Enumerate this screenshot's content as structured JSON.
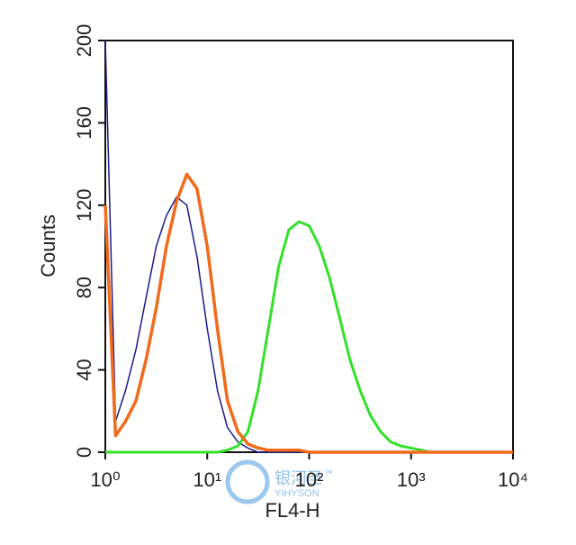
{
  "chart_data": {
    "type": "line",
    "y_label": "Counts",
    "x_label": "FL4-H",
    "xscale": "log",
    "x": [
      1,
      1.26,
      1.58,
      2,
      2.51,
      3.16,
      3.98,
      5.01,
      6.31,
      7.94,
      10,
      12.6,
      15.8,
      20,
      25.1,
      31.6,
      39.8,
      50.1,
      63.1,
      79.4,
      100,
      126,
      158,
      200,
      251,
      316,
      398,
      501,
      631,
      794,
      1000,
      1260,
      1580,
      2000,
      2510,
      3160,
      3980,
      5010,
      6310,
      7940,
      10000
    ],
    "series": [
      {
        "color": "#1a1a8c",
        "width": 1.5,
        "values": [
          200,
          15,
          30,
          50,
          75,
          100,
          115,
          124,
          120,
          95,
          60,
          30,
          12,
          5,
          2,
          0,
          0,
          0,
          0,
          0,
          0,
          0,
          0,
          0,
          0,
          0,
          0,
          0,
          0,
          0,
          0,
          0,
          0,
          0,
          0,
          0,
          0,
          0,
          0,
          0,
          0
        ]
      },
      {
        "color": "#f26a1b",
        "width": 3.5,
        "values": [
          120,
          8,
          15,
          25,
          45,
          70,
          100,
          122,
          135,
          128,
          100,
          60,
          25,
          10,
          4,
          2,
          1,
          1,
          1,
          1,
          0,
          0,
          0,
          0,
          0,
          0,
          0,
          0,
          0,
          0,
          0,
          0,
          0,
          0,
          0,
          0,
          0,
          0,
          0,
          0,
          0
        ]
      },
      {
        "color": "#33e02a",
        "width": 3,
        "values": [
          0,
          0,
          0,
          0,
          0,
          0,
          0,
          0,
          0,
          0,
          0,
          0,
          1,
          3,
          10,
          30,
          60,
          90,
          108,
          112,
          110,
          100,
          85,
          65,
          45,
          30,
          18,
          10,
          5,
          3,
          2,
          1,
          0,
          0,
          0,
          0,
          0,
          0,
          0,
          0,
          0
        ]
      }
    ],
    "xlim": [
      1,
      10000
    ],
    "xticks": [
      {
        "value": 1,
        "label": "10⁰"
      },
      {
        "value": 10,
        "label": "10¹"
      },
      {
        "value": 100,
        "label": "10²"
      },
      {
        "value": 1000,
        "label": "10³"
      },
      {
        "value": 10000,
        "label": "10⁴"
      }
    ],
    "ylim": [
      0,
      200
    ],
    "yticks": [
      0,
      40,
      80,
      120,
      160,
      200
    ]
  },
  "watermark": {
    "cn": "银河圣",
    "en": "YIHYSON",
    "tm": "™"
  }
}
